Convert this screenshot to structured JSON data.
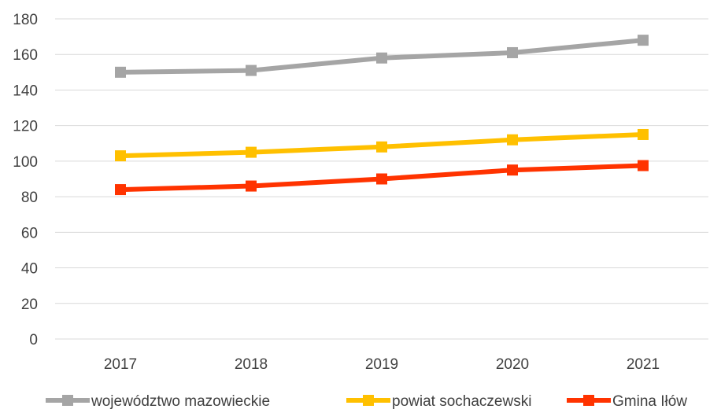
{
  "chart_data": {
    "type": "line",
    "title": "",
    "xlabel": "",
    "ylabel": "",
    "categories": [
      "2017",
      "2018",
      "2019",
      "2020",
      "2021"
    ],
    "ylim": [
      0,
      180
    ],
    "yticks": [
      0,
      20,
      40,
      60,
      80,
      100,
      120,
      140,
      160,
      180
    ],
    "grid": "horizontal",
    "legend": "bottom",
    "series": [
      {
        "name": "województwo mazowieckie",
        "color": "#a5a5a5",
        "marker": "square",
        "values": [
          150,
          151,
          158,
          161,
          168
        ]
      },
      {
        "name": "powiat sochaczewski",
        "color": "#ffc000",
        "marker": "square",
        "values": [
          103,
          105,
          108,
          112,
          115
        ]
      },
      {
        "name": "Gmina Iłów",
        "color": "#ff3300",
        "marker": "square",
        "values": [
          84,
          86,
          90,
          95,
          97.5
        ]
      }
    ]
  }
}
